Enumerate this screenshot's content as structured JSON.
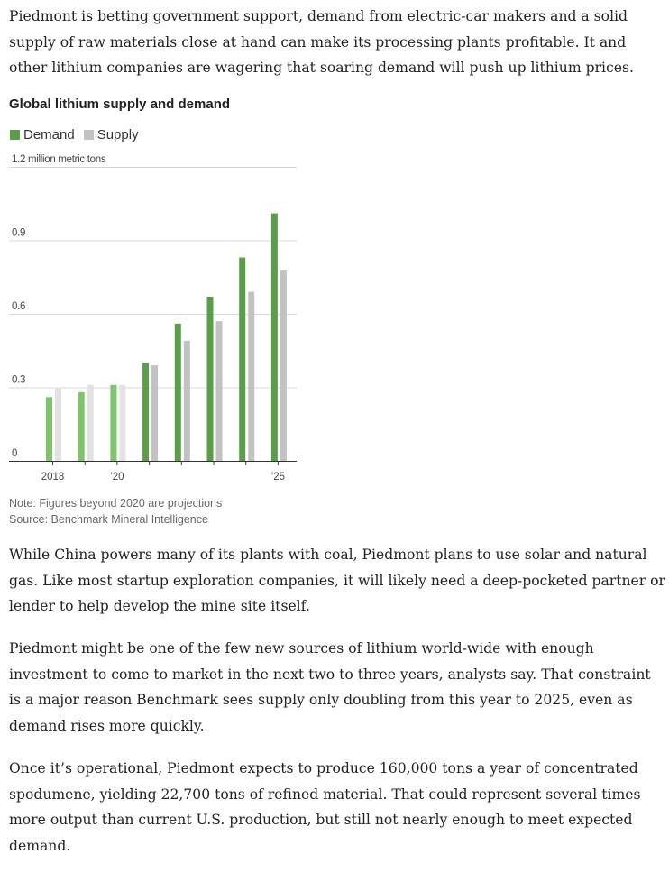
{
  "article": {
    "p1": "Piedmont is betting government support, demand from electric-car makers and a solid supply of raw materials close at hand can make its processing plants profitable. It and other lithium companies are wagering that soaring demand will push up lithium prices.",
    "p2": "While China powers many of its plants with coal, Piedmont plans to use solar and natural gas. Like most startup exploration companies, it will likely need a deep-pocketed partner or lender to help develop the mine site itself.",
    "p3": "Piedmont might be one of the few new sources of lithium world-wide with enough investment to come to market in the next two to three years, analysts say. That constraint is a major reason Benchmark sees supply only doubling from this year to 2025, even as demand rises more quickly.",
    "p4": "Once it’s operational, Piedmont expects to produce 160,000 tons a year of concentrated spodumene, yielding 22,700 tons of refined material. That could represent several times more output than current U.S. production, but still not nearly enough to meet expected demand."
  },
  "chart_data": {
    "type": "bar",
    "title": "Global lithium supply and demand",
    "ylabel": "million metric tons",
    "ylim": [
      0,
      1.2
    ],
    "yticks": [
      {
        "value": 0,
        "label": "0"
      },
      {
        "value": 0.3,
        "label": "0.3"
      },
      {
        "value": 0.6,
        "label": "0.6"
      },
      {
        "value": 0.9,
        "label": "0.9"
      },
      {
        "value": 1.2,
        "label": "1.2 million metric tons"
      }
    ],
    "categories": [
      "2018",
      "2019",
      "2020",
      "2021",
      "2022",
      "2023",
      "2024",
      "2025"
    ],
    "xtick_labels": [
      "2018",
      "",
      "’20",
      "",
      "",
      "",
      "",
      "’25"
    ],
    "series": [
      {
        "name": "Demand",
        "values": [
          0.26,
          0.28,
          0.31,
          0.4,
          0.56,
          0.67,
          0.83,
          1.01
        ],
        "color": "#5a9e47",
        "historical_color": "#7dc46a"
      },
      {
        "name": "Supply",
        "values": [
          0.3,
          0.31,
          0.31,
          0.39,
          0.49,
          0.57,
          0.69,
          0.78
        ],
        "color": "#c2c2c2",
        "historical_color": "#e2e2e2"
      }
    ],
    "projection_start_index": 3,
    "grid": true,
    "legend": "top-left",
    "note": "Note: Figures beyond 2020 are projections",
    "source": "Source: Benchmark Mineral Intelligence"
  }
}
